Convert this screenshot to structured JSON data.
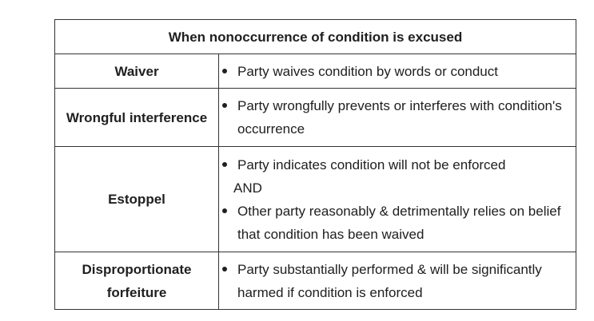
{
  "table": {
    "title": "When nonoccurrence of condition is excused",
    "rows": [
      {
        "label": "Waiver",
        "bullet_1": "Party waives condition by words or conduct"
      },
      {
        "label": "Wrongful interference",
        "bullet_1": "Party wrongfully prevents or interferes with condition's occurrence"
      },
      {
        "label": "Estoppel",
        "bullet_1": "Party indicates condition will not be enforced",
        "connector": "AND",
        "bullet_2": "Other party reasonably & detrimentally relies on belief that condition has been waived"
      },
      {
        "label": "Disproportionate forfeiture",
        "bullet_1": "Party substantially performed & will be significantly harmed if condition is enforced"
      }
    ]
  }
}
